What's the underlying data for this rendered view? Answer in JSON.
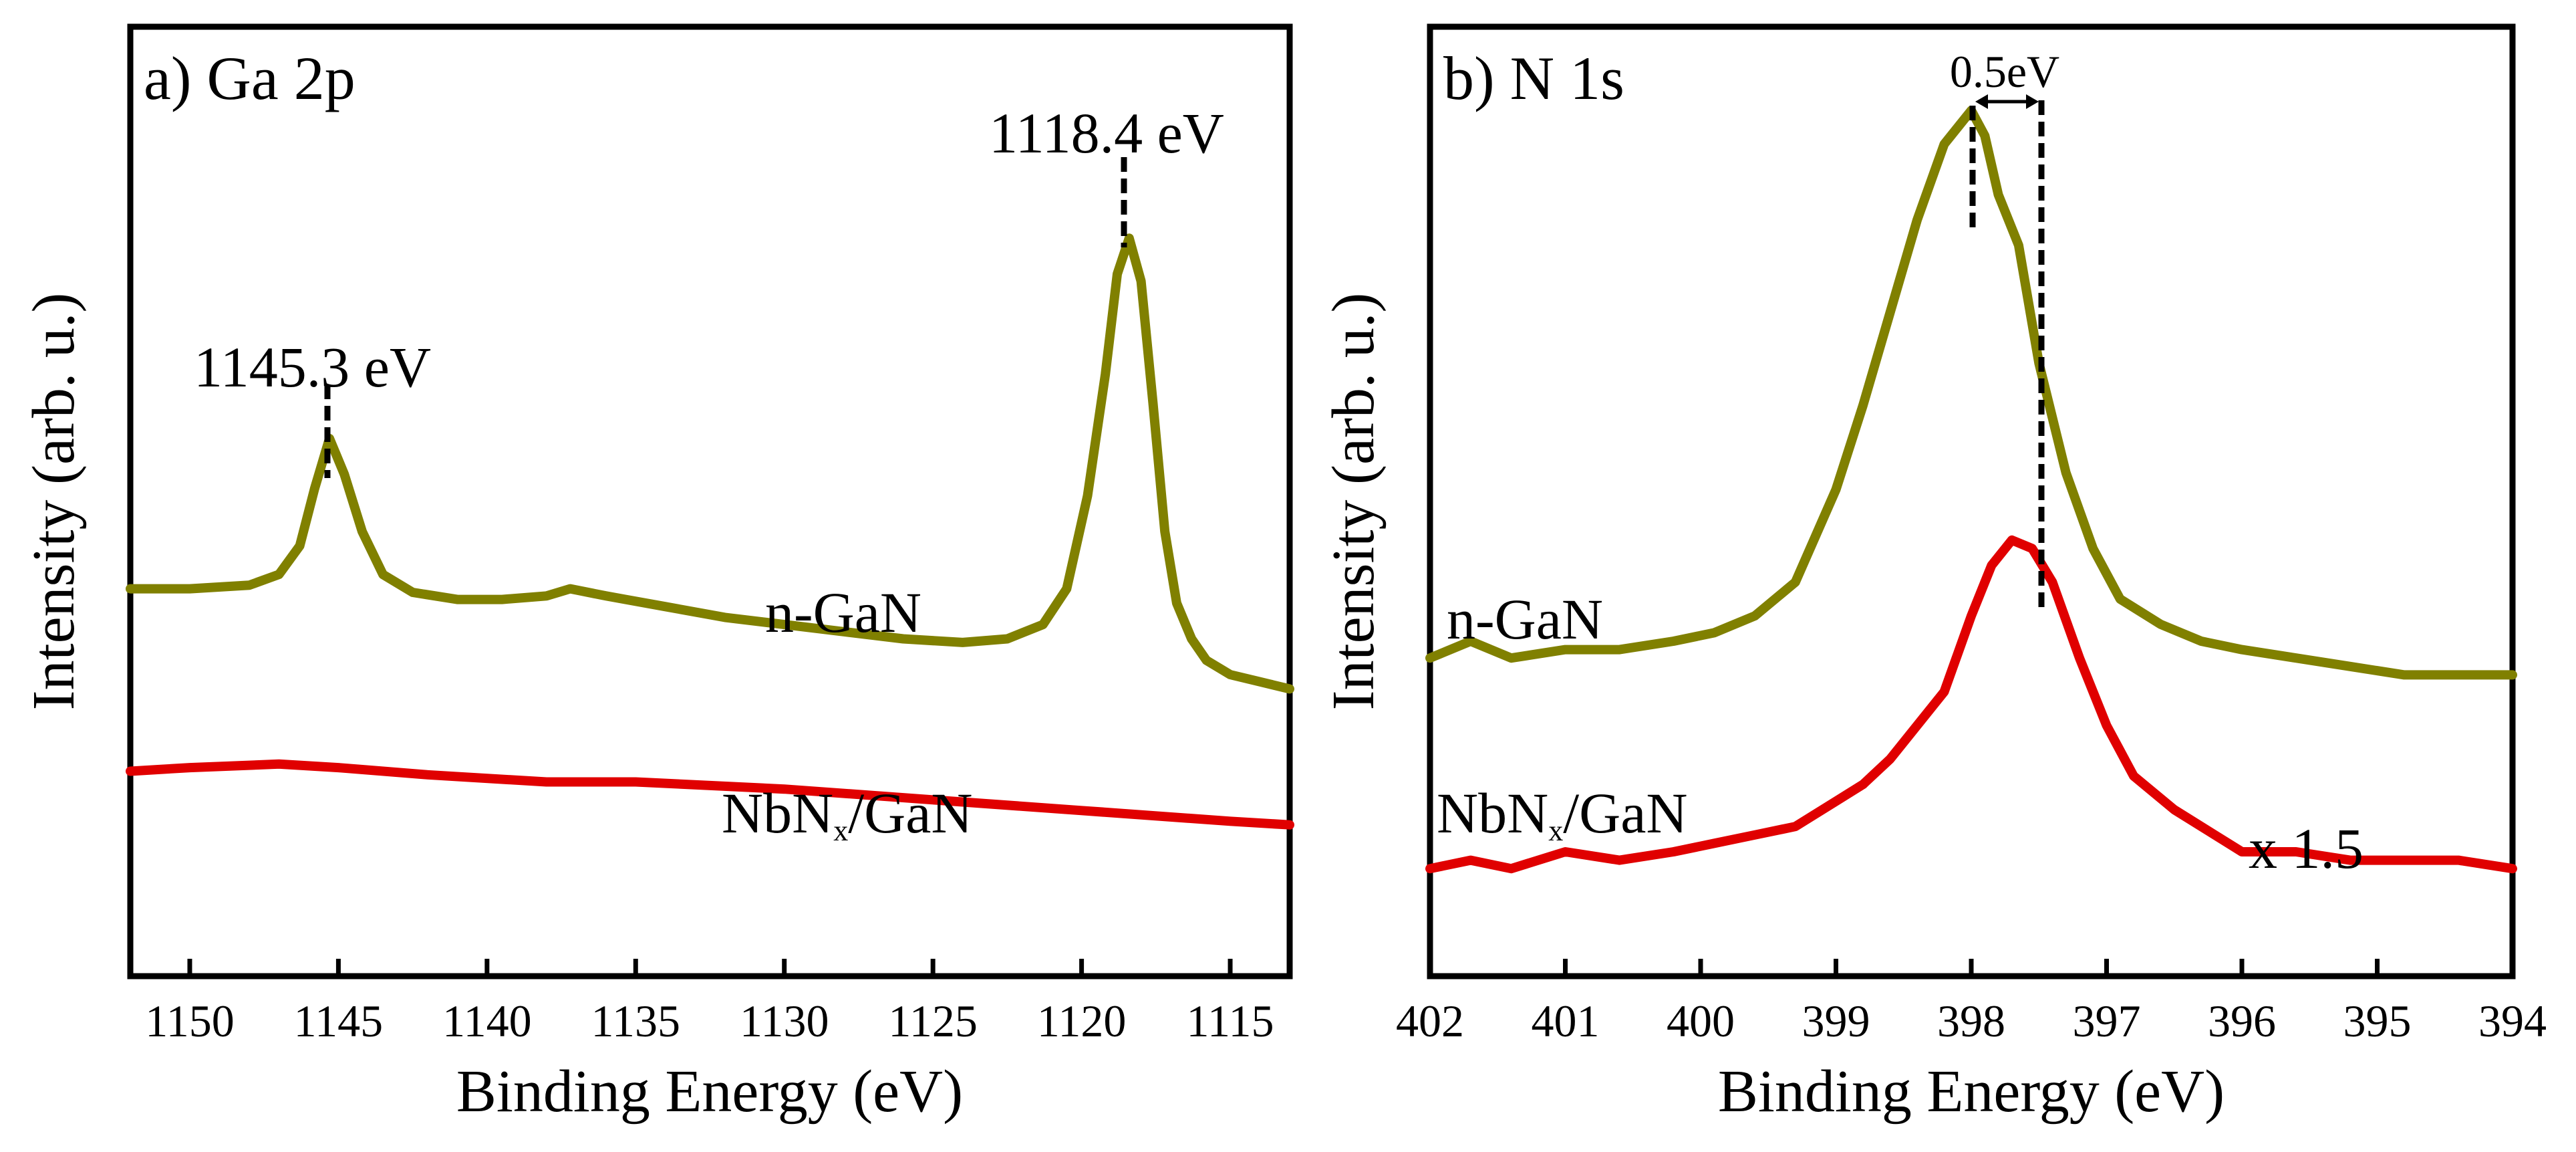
{
  "chart_data": [
    {
      "type": "line",
      "title": "a) Ga 2p",
      "xlabel": "Binding Energy (eV)",
      "ylabel": "Intensity (arb. u.)",
      "xlim": [
        1152,
        1113
      ],
      "ylim": [
        0,
        100
      ],
      "x_ticks": [
        1150,
        1145,
        1140,
        1135,
        1130,
        1125,
        1120,
        1115
      ],
      "series": [
        {
          "name": "n-GaN",
          "color": "#808000",
          "x": [
            1152,
            1150,
            1148,
            1147,
            1146.3,
            1145.8,
            1145.3,
            1144.8,
            1144.2,
            1143.5,
            1142.5,
            1141,
            1139.5,
            1138,
            1137.2,
            1136,
            1134,
            1132,
            1130,
            1128,
            1126,
            1124,
            1122.5,
            1121.3,
            1120.5,
            1119.8,
            1119.2,
            1118.8,
            1118.4,
            1118.0,
            1117.6,
            1117.2,
            1116.8,
            1116.3,
            1115.8,
            1115,
            1114,
            1113
          ],
          "y": [
            42,
            42,
            42.5,
            44,
            48,
            56,
            63,
            58,
            50,
            44,
            41.5,
            40.5,
            40.5,
            41,
            42,
            41,
            39.5,
            38,
            37,
            36,
            35,
            34.5,
            35,
            37,
            42,
            55,
            72,
            86,
            91,
            85,
            68,
            50,
            40,
            35,
            32,
            30,
            29,
            28
          ]
        },
        {
          "name": "NbNx/GaN",
          "color": "#e00000",
          "x": [
            1152,
            1150,
            1147,
            1145,
            1142,
            1138,
            1135,
            1130,
            1125,
            1120,
            1115,
            1113
          ],
          "y": [
            16.5,
            17,
            17.5,
            17,
            16,
            15,
            15,
            14,
            12.5,
            11,
            9.5,
            9
          ]
        }
      ],
      "annotations": [
        {
          "text": "1145.3 eV",
          "x": 1145.3
        },
        {
          "text": "1118.4 eV",
          "x": 1118.4
        },
        {
          "text": "n-GaN"
        },
        {
          "text": "NbNx/GaN"
        }
      ]
    },
    {
      "type": "line",
      "title": "b) N 1s",
      "xlabel": "Binding Energy (eV)",
      "ylabel": "Intensity (arb. u.)",
      "xlim": [
        402,
        394
      ],
      "ylim": [
        0,
        100
      ],
      "x_ticks": [
        402,
        401,
        400,
        399,
        398,
        397,
        396,
        395,
        394
      ],
      "series": [
        {
          "name": "n-GaN",
          "color": "#808000",
          "x": [
            402,
            401.7,
            401.4,
            401.0,
            400.6,
            400.2,
            399.9,
            399.6,
            399.3,
            399.0,
            398.8,
            398.6,
            398.4,
            398.2,
            398.0,
            397.9,
            397.8,
            397.65,
            397.5,
            397.3,
            397.1,
            396.9,
            396.6,
            396.3,
            396.0,
            395.6,
            395.2,
            394.8,
            394.4,
            394.0
          ],
          "y": [
            33,
            35,
            33,
            34,
            34,
            35,
            36,
            38,
            42,
            53,
            63,
            74,
            85,
            94,
            98,
            95,
            88,
            82,
            68,
            55,
            46,
            40,
            37,
            35,
            34,
            33,
            32,
            31,
            31,
            31
          ]
        },
        {
          "name": "NbNx/GaN",
          "color": "#e00000",
          "x": [
            402,
            401.7,
            401.4,
            401.0,
            400.6,
            400.2,
            399.9,
            399.6,
            399.3,
            399.0,
            398.8,
            398.6,
            398.4,
            398.2,
            398.0,
            397.85,
            397.7,
            397.55,
            397.4,
            397.2,
            397.0,
            396.8,
            396.5,
            396.2,
            396.0,
            395.6,
            395.2,
            394.8,
            394.4,
            394.0
          ],
          "y": [
            8,
            9,
            8,
            10,
            9,
            10,
            11,
            12,
            13,
            16,
            18,
            21,
            25,
            29,
            38,
            44,
            47,
            46,
            42,
            33,
            25,
            19,
            15,
            12,
            10,
            10,
            9,
            9,
            9,
            8
          ]
        }
      ],
      "annotations": [
        {
          "text": "0.5eV"
        },
        {
          "text": "n-GaN"
        },
        {
          "text": "NbNx/GaN"
        },
        {
          "text": "x 1.5"
        }
      ]
    }
  ],
  "labels": {
    "a_peak1": "1145.3 eV",
    "a_peak2": "1118.4 eV",
    "a_ngan": "n-GaN",
    "a_nbn_main": "NbN",
    "a_nbn_sub": "x",
    "a_nbn_rest": "/GaN",
    "b_shift": "0.5eV",
    "b_ngan": "n-GaN",
    "b_nbn_main": "NbN",
    "b_nbn_sub": "x",
    "b_nbn_rest": "/GaN",
    "b_scale": "x 1.5"
  }
}
